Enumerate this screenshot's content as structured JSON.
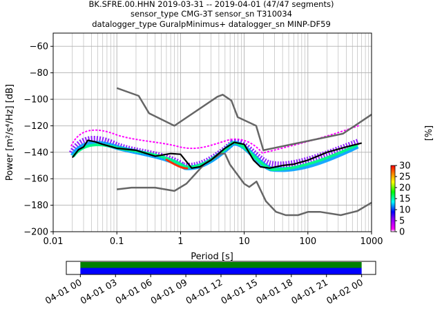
{
  "title_lines": [
    "BK.SFRE.00.HHN   2019-03-31 -- 2019-04-01  (47/47 segments)",
    "sensor_type CMG-3T sensor_sn T310034",
    "datalogger_type GuralpMinimus+ datalogger_sn MINP-DF59"
  ],
  "colorbar": {
    "label": "[%]",
    "ticks": [
      "0",
      "5",
      "10",
      "15",
      "20",
      "25",
      "30"
    ],
    "range": [
      0,
      30
    ],
    "colors": [
      "#ffffff",
      "#ff00ff",
      "#0000ff",
      "#00ffff",
      "#00ff00",
      "#ffff00",
      "#ff8000",
      "#ff0000"
    ]
  },
  "chart_data": [
    {
      "type": "line",
      "xlabel": "Period [s]",
      "ylabel": "Power [m²/s⁴/Hz] [dB]",
      "xscale": "log",
      "xlim": [
        0.01,
        1000
      ],
      "ylim": [
        -200,
        -50
      ],
      "grid": true,
      "x_tick_labels": [
        "0.01",
        "0.1",
        "1",
        "10",
        "100",
        "1000"
      ],
      "y_tick_labels": [
        "−200",
        "−180",
        "−160",
        "−140",
        "−120",
        "−100",
        "−80",
        "−60"
      ],
      "y_ticks": [
        -200,
        -180,
        -160,
        -140,
        -120,
        -100,
        -80,
        -60
      ],
      "series": [
        {
          "role": "noise-model-high",
          "color": "#666666",
          "points": [
            [
              0.1,
              -91.5
            ],
            [
              0.22,
              -97.4
            ],
            [
              0.32,
              -110.5
            ],
            [
              0.8,
              -120
            ],
            [
              3.8,
              -98
            ],
            [
              4.6,
              -96.5
            ],
            [
              6.3,
              -101
            ],
            [
              7.9,
              -113.5
            ],
            [
              15.4,
              -120
            ],
            [
              20,
              -138.5
            ],
            [
              354.8,
              -126
            ],
            [
              1000,
              -111.5
            ]
          ]
        },
        {
          "role": "noise-model-low",
          "color": "#666666",
          "points": [
            [
              0.1,
              -168
            ],
            [
              0.17,
              -166.7
            ],
            [
              0.4,
              -166.7
            ],
            [
              0.8,
              -169.2
            ],
            [
              1.24,
              -163.7
            ],
            [
              2.4,
              -148.6
            ],
            [
              4.3,
              -141.1
            ],
            [
              5.0,
              -141.1
            ],
            [
              6.0,
              -149.4
            ],
            [
              10,
              -163.8
            ],
            [
              12,
              -166.2
            ],
            [
              15.6,
              -162.1
            ],
            [
              21.9,
              -177
            ],
            [
              31.6,
              -185
            ],
            [
              45,
              -187.5
            ],
            [
              70,
              -187.5
            ],
            [
              101,
              -185
            ],
            [
              154,
              -185
            ],
            [
              328,
              -187.5
            ],
            [
              600,
              -184.4
            ],
            [
              1000,
              -178
            ]
          ]
        },
        {
          "role": "mode",
          "color": "#000000",
          "points": [
            [
              0.02,
              -144
            ],
            [
              0.025,
              -138
            ],
            [
              0.03,
              -136
            ],
            [
              0.035,
              -131
            ],
            [
              0.045,
              -132
            ],
            [
              0.06,
              -134
            ],
            [
              0.1,
              -137
            ],
            [
              0.2,
              -138.5
            ],
            [
              0.4,
              -143
            ],
            [
              0.7,
              -141
            ],
            [
              1.0,
              -141.5
            ],
            [
              1.5,
              -152
            ],
            [
              2.0,
              -151
            ],
            [
              3.0,
              -146
            ],
            [
              5.0,
              -137
            ],
            [
              7.0,
              -132.5
            ],
            [
              10.0,
              -134
            ],
            [
              14.0,
              -146
            ],
            [
              18.0,
              -151
            ],
            [
              25.0,
              -152
            ],
            [
              40.0,
              -150
            ],
            [
              60.0,
              -149
            ],
            [
              100.0,
              -146
            ],
            [
              200.0,
              -140
            ],
            [
              400.0,
              -136
            ],
            [
              700.0,
              -133
            ]
          ]
        }
      ]
    },
    {
      "type": "timeline",
      "x_tick_labels": [
        "04-01 00",
        "04-01 03",
        "04-01 06",
        "04-01 09",
        "04-01 12",
        "04-01 15",
        "04-01 18",
        "04-01 21",
        "04-02 00"
      ],
      "x_ticks": [
        0,
        3,
        6,
        9,
        12,
        15,
        18,
        21,
        24
      ],
      "xlim_hours": [
        -1.2,
        25.2
      ],
      "coverage": [
        {
          "role": "data-available",
          "color": "#008000",
          "start_hour": 0,
          "end_hour": 24
        },
        {
          "role": "data-used",
          "color": "#0000ff",
          "start_hour": 0,
          "end_hour": 24
        }
      ]
    }
  ]
}
